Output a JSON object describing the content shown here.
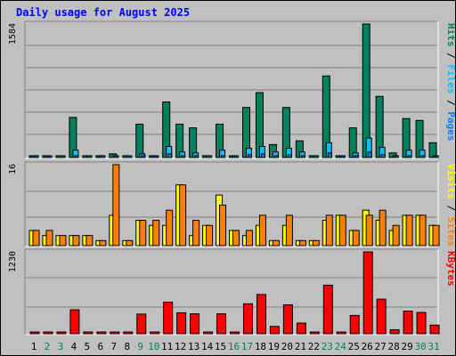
{
  "chart_data": [
    {
      "type": "bar",
      "title": "Daily usage for August 2025",
      "ymax_label": "1584",
      "ylim": [
        0,
        1584
      ],
      "right_label_parts": [
        "Pages",
        "Files",
        "Hits"
      ],
      "categories": [
        "1",
        "2",
        "3",
        "4",
        "5",
        "6",
        "7",
        "8",
        "9",
        "10",
        "11",
        "12",
        "13",
        "14",
        "15",
        "16",
        "17",
        "18",
        "19",
        "20",
        "21",
        "22",
        "23",
        "24",
        "25",
        "26",
        "27",
        "28",
        "29",
        "30",
        "31"
      ],
      "series": [
        {
          "name": "Hits",
          "color": "#00805c",
          "values": [
            22,
            22,
            11,
            476,
            22,
            22,
            44,
            22,
            396,
            22,
            660,
            396,
            352,
            22,
            396,
            22,
            594,
            770,
            154,
            594,
            198,
            22,
            968,
            22,
            352,
            1584,
            726,
            55,
            462,
            440,
            176
          ]
        },
        {
          "name": "Files",
          "color": "#00c0ff",
          "values": [
            22,
            11,
            11,
            88,
            22,
            22,
            22,
            11,
            44,
            11,
            132,
            66,
            55,
            11,
            88,
            11,
            110,
            132,
            66,
            110,
            66,
            11,
            176,
            22,
            55,
            231,
            121,
            22,
            88,
            88,
            22
          ]
        },
        {
          "name": "Pages",
          "color": "#0080ff",
          "values": [
            11,
            11,
            5,
            22,
            11,
            11,
            11,
            5,
            22,
            5,
            44,
            22,
            22,
            5,
            22,
            5,
            33,
            44,
            22,
            33,
            22,
            5,
            55,
            11,
            22,
            66,
            33,
            11,
            22,
            22,
            11
          ]
        }
      ]
    },
    {
      "type": "bar",
      "ymax_label": "16",
      "ylim": [
        0,
        16
      ],
      "right_label_parts": [
        "Sites",
        "Visits"
      ],
      "series": [
        {
          "name": "Visits",
          "color": "#ffff00",
          "values": [
            3,
            2,
            2,
            2,
            2,
            1,
            6,
            1,
            5,
            4,
            4,
            12,
            2,
            4,
            10,
            3,
            2,
            4,
            1,
            4,
            1,
            1,
            5,
            6,
            3,
            7,
            5,
            3,
            6,
            6,
            4
          ]
        },
        {
          "name": "Sites",
          "color": "#ff8000",
          "values": [
            3,
            3,
            2,
            2,
            2,
            1,
            16,
            1,
            5,
            5,
            7,
            12,
            5,
            4,
            8,
            3,
            3,
            6,
            1,
            6,
            1,
            1,
            6,
            6,
            3,
            6,
            7,
            4,
            6,
            6,
            4
          ]
        }
      ]
    },
    {
      "type": "bar",
      "ymax_label": "1230",
      "ylim": [
        0,
        1230
      ],
      "right_label_parts": [
        "KBytes"
      ],
      "series": [
        {
          "name": "KBytes",
          "color": "#ff0000",
          "values": [
            0,
            0,
            0,
            360,
            0,
            0,
            20,
            0,
            295,
            0,
            475,
            315,
            300,
            0,
            300,
            0,
            450,
            590,
            110,
            435,
            160,
            0,
            730,
            0,
            275,
            1230,
            520,
            60,
            340,
            320,
            130
          ]
        }
      ]
    }
  ],
  "colors": {
    "background": "#c0c0c0",
    "title": "#0000ff",
    "grid": "#808080",
    "weekend_day": "#00805c",
    "weekday_day": "#000000"
  },
  "weekend_days": [
    "2",
    "3",
    "9",
    "10",
    "16",
    "17",
    "23",
    "24",
    "30",
    "31"
  ]
}
